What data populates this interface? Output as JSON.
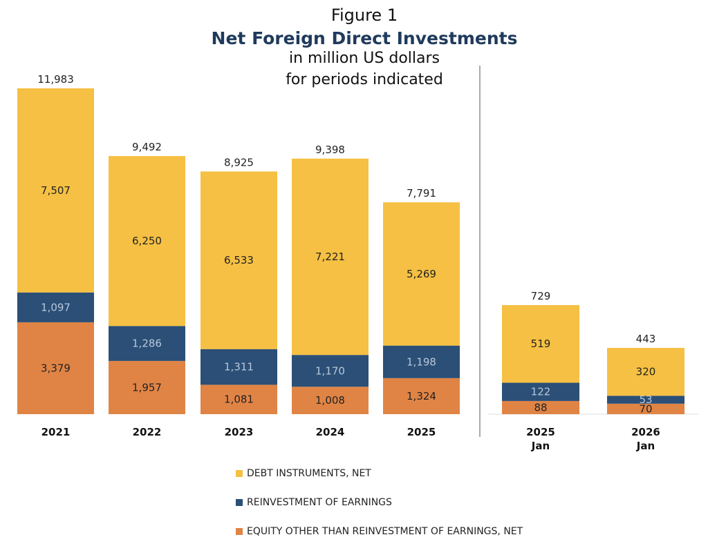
{
  "chart_data": [
    {
      "type": "bar",
      "stacked": true,
      "title": "Figure 1",
      "subtitle": "Net Foreign Direct Investments",
      "subtitle_lines": [
        "in million US dollars",
        "for periods indicated"
      ],
      "categories": [
        "2021",
        "2022",
        "2023",
        "2024",
        "2025"
      ],
      "totals": [
        11983,
        9492,
        8925,
        9398,
        7791
      ],
      "total_labels": [
        "11,983",
        "9,492",
        "8,925",
        "9,398",
        "7,791"
      ],
      "series": [
        {
          "name": "EQUITY OTHER THAN REINVESTMENT OF EARNINGS, NET",
          "color": "#E08445",
          "values": [
            3379,
            1957,
            1081,
            1008,
            1324
          ],
          "labels": [
            "3,379",
            "1,957",
            "1,081",
            "1,008",
            "1,324"
          ]
        },
        {
          "name": "REINVESTMENT OF EARNINGS",
          "color": "#2B4F76",
          "values": [
            1097,
            1286,
            1311,
            1170,
            1198
          ],
          "labels": [
            "1,097",
            "1,286",
            "1,311",
            "1,170",
            "1,198"
          ]
        },
        {
          "name": "DEBT INSTRUMENTS, NET",
          "color": "#F5C043",
          "values": [
            7507,
            6250,
            6533,
            7221,
            5269
          ],
          "labels": [
            "7,507",
            "6,250",
            "6,533",
            "7,221",
            "5,269"
          ]
        }
      ],
      "ylim": [
        0,
        11983
      ]
    },
    {
      "type": "bar",
      "stacked": true,
      "categories": [
        "2025 Jan",
        "2026 Jan"
      ],
      "category_lines": [
        [
          "2025",
          "Jan"
        ],
        [
          "2026",
          "Jan"
        ]
      ],
      "totals": [
        729,
        443
      ],
      "total_labels": [
        "729",
        "443"
      ],
      "series": [
        {
          "name": "EQUITY OTHER THAN REINVESTMENT OF EARNINGS, NET",
          "color": "#E08445",
          "values": [
            88,
            70
          ],
          "labels": [
            "88",
            "70"
          ]
        },
        {
          "name": "REINVESTMENT OF EARNINGS",
          "color": "#2B4F76",
          "values": [
            122,
            53
          ],
          "labels": [
            "122",
            "53"
          ]
        },
        {
          "name": "DEBT INSTRUMENTS, NET",
          "color": "#F5C043",
          "values": [
            519,
            320
          ],
          "labels": [
            "519",
            "320"
          ]
        }
      ],
      "ylim": [
        0,
        729
      ]
    }
  ],
  "legend": {
    "placement": "bottom",
    "items": [
      {
        "label": "DEBT INSTRUMENTS, NET",
        "color": "#F5C043"
      },
      {
        "label": "REINVESTMENT OF EARNINGS",
        "color": "#2B4F76"
      },
      {
        "label": "EQUITY OTHER THAN REINVESTMENT OF EARNINGS, NET",
        "color": "#E08445"
      }
    ]
  }
}
